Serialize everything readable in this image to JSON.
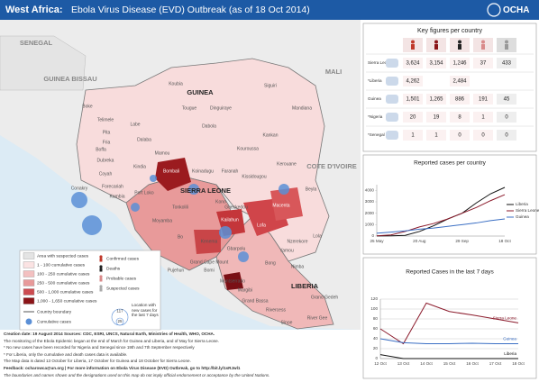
{
  "header": {
    "title_prefix": "West Africa:",
    "title": "Ebola Virus Disease (EVD) Outbreak (as of 18 Oct 2014)",
    "logo": "OCHA"
  },
  "map": {
    "countries": [
      "SENEGAL",
      "GUINEA BISSAU",
      "MALI",
      "GUINEA",
      "SIERRA LEONE",
      "LIBERIA",
      "COTE D'IVOIRE"
    ],
    "regions": [
      "Boke",
      "Telimele",
      "Pita",
      "Labe",
      "Koubia",
      "Tougue",
      "Dinguiraye",
      "Siguiri",
      "Mandiana",
      "Kankan",
      "Dabola",
      "Kouroussa",
      "Faranah",
      "Dalaba",
      "Mamou",
      "Kindia",
      "Fria",
      "Boffa",
      "Dubreka",
      "Coyah",
      "Conakry",
      "Forecariah",
      "Kambia",
      "Port Loko",
      "Bombali",
      "Koinadugu",
      "Tonkolili",
      "Kono",
      "Kailahun",
      "Kenema",
      "Bo",
      "Moyamba",
      "Bonthe",
      "Pujehun",
      "Kissidougou",
      "Kerouane",
      "Beyla",
      "Macenta",
      "Gueckedou",
      "Lofa",
      "Nzerekore",
      "Lola",
      "Yamou",
      "Gbarpolu",
      "Bomi",
      "Grand Cape Mount",
      "Montserrado",
      "Margibi",
      "Bong",
      "Nimba",
      "Grand Bassa",
      "Rivercess",
      "Sinoe",
      "Grand Gedeh",
      "River Gee"
    ]
  },
  "legend": {
    "fill_classes": [
      "Area with suspected cases",
      "1 - 100 cumulative cases",
      "100 - 250 cumulative cases",
      "250 - 500 cumulative cases",
      "500 - 1,000 cumulative cases",
      "1,000 - 1,650 cumulative cases"
    ],
    "boundary": "Country boundary",
    "cumulative": "Cumulative cases",
    "icons": [
      "Confirmed cases",
      "Deaths",
      "Probable cases",
      "Suspected cases"
    ],
    "new_cases": "Location with new cases for the last 7 days",
    "circle_values": [
      117,
      25
    ]
  },
  "key_figures": {
    "title": "Key figures per country",
    "rows": [
      {
        "country": "Sierra Leone",
        "values": [
          "3,624",
          "3,154",
          "1,246",
          "37",
          "433"
        ]
      },
      {
        "country": "*Liberia",
        "values": [
          "4,262",
          null,
          "2,484",
          null,
          null
        ]
      },
      {
        "country": "Guinea",
        "values": [
          "1,501",
          "1,265",
          "886",
          "191",
          "45"
        ]
      },
      {
        "country": "*Nigeria",
        "values": [
          "20",
          "19",
          "8",
          "1",
          "0"
        ]
      },
      {
        "country": "*Senegal",
        "values": [
          "1",
          "1",
          "0",
          "0",
          "0"
        ]
      }
    ]
  },
  "chart_data": [
    {
      "type": "line",
      "title": "Reported cases per country",
      "categories": [
        "25 May",
        null,
        null,
        "20 Aug",
        null,
        null,
        "29 Sep",
        null,
        null,
        "18 Oct"
      ],
      "series": [
        {
          "name": "Liberia",
          "color": "#111111",
          "values": [
            10,
            20,
            60,
            400,
            900,
            1500,
            2000,
            2900,
            3700,
            4262
          ]
        },
        {
          "name": "Sierra Leone",
          "color": "#8b1a2b",
          "values": [
            20,
            100,
            400,
            800,
            1100,
            1500,
            2000,
            2500,
            3100,
            3624
          ]
        },
        {
          "name": "Guinea",
          "color": "#3b6fc4",
          "values": [
            250,
            350,
            450,
            600,
            700,
            850,
            1000,
            1150,
            1350,
            1501
          ]
        }
      ],
      "ylim": [
        0,
        4500
      ],
      "yticks": [
        0,
        1000,
        2000,
        3000,
        4000
      ],
      "grid": false,
      "legend": "right"
    },
    {
      "type": "line",
      "title": "Reported Cases in the last 7 days",
      "categories": [
        "12 Oct",
        "13 Oct",
        "14 Oct",
        "15 Oct",
        "16 Oct",
        "17 Oct",
        "18 Oct"
      ],
      "series": [
        {
          "name": "Sierra Leone",
          "color": "#8b1a2b",
          "values": [
            60,
            30,
            112,
            95,
            88,
            80,
            72
          ]
        },
        {
          "name": "Guinea",
          "color": "#3b6fc4",
          "values": [
            40,
            32,
            30,
            30,
            31,
            30,
            30
          ]
        },
        {
          "name": "Liberia",
          "color": "#111111",
          "values": [
            8,
            0,
            0,
            0,
            0,
            0,
            0
          ]
        }
      ],
      "ylim": [
        0,
        120
      ],
      "yticks": [
        0,
        20,
        40,
        60,
        80,
        100,
        120
      ],
      "grid": true,
      "legend": "line-end"
    }
  ],
  "footer": {
    "lines": [
      "Creation date: 19 August 2014     Sources: CDC, ESRI, UNCS, Natural Earth, Ministries of Health, WHO, OCHA.",
      "The monitoring of the Ebola Epidemic began at the end of March for Guinea and Liberia, and of May for Sierra Leone.",
      "* No new cases have been recorded for Nigeria and Senegal since 19th and 7th September respectively",
      "* For Liberia, only the cumulative and death cases data is available.",
      "The Map data is dated 13 October for Liberia, 17 October for Guinea and 18 October for Sierra Leone.",
      "Feedback: ocharowca@un.org | For more information on Ebola Virus Disease (EVD) Outbreak, go to http://bit.ly/1sRJwl1",
      "The boundaries and names shown and the designations used on this map do not imply official endorsement or acceptance by the United Nations."
    ]
  }
}
